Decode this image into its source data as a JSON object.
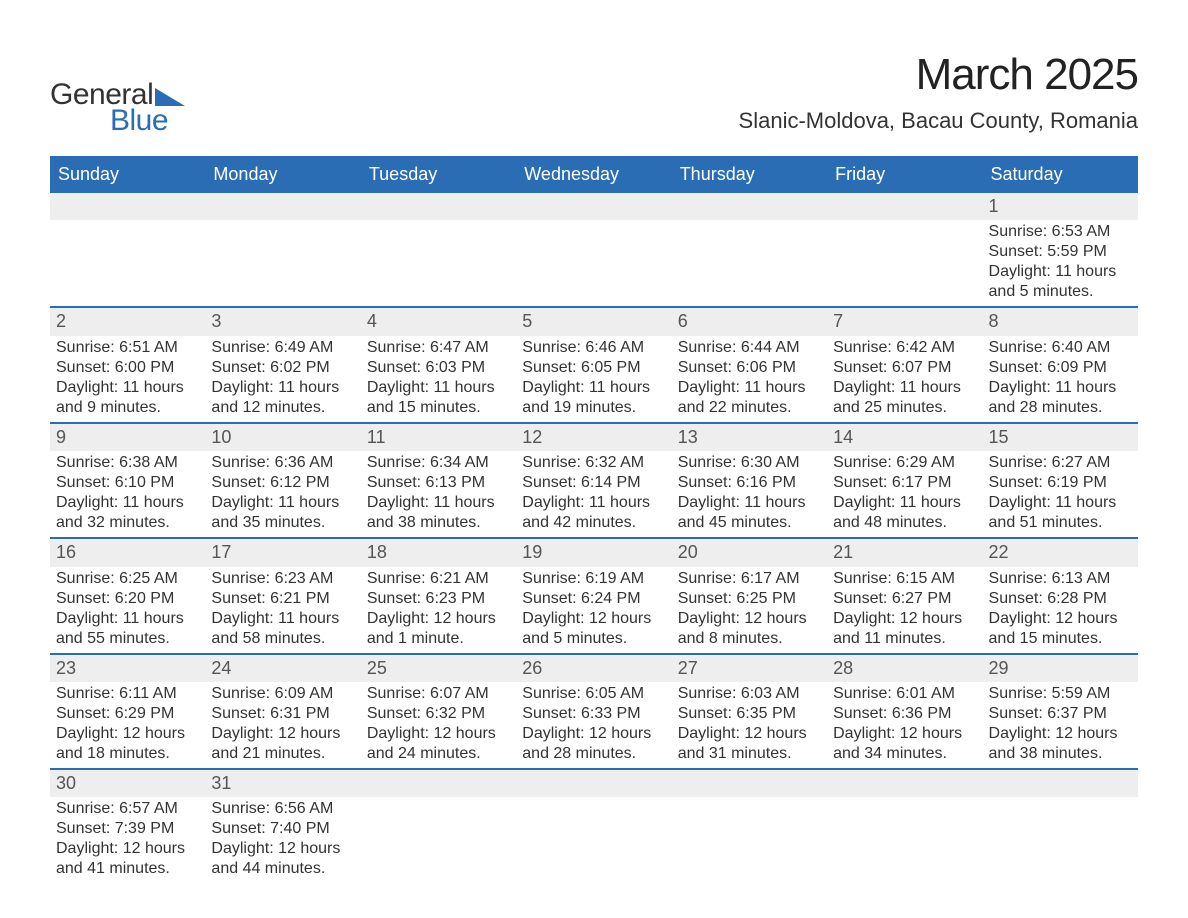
{
  "brand": {
    "part1": "General",
    "part2": "Blue"
  },
  "title": "March 2025",
  "location": "Slanic-Moldova, Bacau County, Romania",
  "colors": {
    "header_bg": "#2a6db4",
    "header_text": "#ffffff",
    "daynum_bg": "#eeeeee",
    "daynum_text": "#555555",
    "body_text": "#333333",
    "row_border": "#2a6db4",
    "brand_blue": "#2a6db4",
    "page_bg": "#ffffff"
  },
  "typography": {
    "title_fontsize": 44,
    "location_fontsize": 22,
    "header_fontsize": 18,
    "daynum_fontsize": 18,
    "cell_fontsize": 16,
    "font_family": "Arial"
  },
  "weekdays": [
    "Sunday",
    "Monday",
    "Tuesday",
    "Wednesday",
    "Thursday",
    "Friday",
    "Saturday"
  ],
  "weeks": [
    [
      null,
      null,
      null,
      null,
      null,
      null,
      {
        "n": "1",
        "sr": "Sunrise: 6:53 AM",
        "ss": "Sunset: 5:59 PM",
        "d1": "Daylight: 11 hours",
        "d2": "and 5 minutes."
      }
    ],
    [
      {
        "n": "2",
        "sr": "Sunrise: 6:51 AM",
        "ss": "Sunset: 6:00 PM",
        "d1": "Daylight: 11 hours",
        "d2": "and 9 minutes."
      },
      {
        "n": "3",
        "sr": "Sunrise: 6:49 AM",
        "ss": "Sunset: 6:02 PM",
        "d1": "Daylight: 11 hours",
        "d2": "and 12 minutes."
      },
      {
        "n": "4",
        "sr": "Sunrise: 6:47 AM",
        "ss": "Sunset: 6:03 PM",
        "d1": "Daylight: 11 hours",
        "d2": "and 15 minutes."
      },
      {
        "n": "5",
        "sr": "Sunrise: 6:46 AM",
        "ss": "Sunset: 6:05 PM",
        "d1": "Daylight: 11 hours",
        "d2": "and 19 minutes."
      },
      {
        "n": "6",
        "sr": "Sunrise: 6:44 AM",
        "ss": "Sunset: 6:06 PM",
        "d1": "Daylight: 11 hours",
        "d2": "and 22 minutes."
      },
      {
        "n": "7",
        "sr": "Sunrise: 6:42 AM",
        "ss": "Sunset: 6:07 PM",
        "d1": "Daylight: 11 hours",
        "d2": "and 25 minutes."
      },
      {
        "n": "8",
        "sr": "Sunrise: 6:40 AM",
        "ss": "Sunset: 6:09 PM",
        "d1": "Daylight: 11 hours",
        "d2": "and 28 minutes."
      }
    ],
    [
      {
        "n": "9",
        "sr": "Sunrise: 6:38 AM",
        "ss": "Sunset: 6:10 PM",
        "d1": "Daylight: 11 hours",
        "d2": "and 32 minutes."
      },
      {
        "n": "10",
        "sr": "Sunrise: 6:36 AM",
        "ss": "Sunset: 6:12 PM",
        "d1": "Daylight: 11 hours",
        "d2": "and 35 minutes."
      },
      {
        "n": "11",
        "sr": "Sunrise: 6:34 AM",
        "ss": "Sunset: 6:13 PM",
        "d1": "Daylight: 11 hours",
        "d2": "and 38 minutes."
      },
      {
        "n": "12",
        "sr": "Sunrise: 6:32 AM",
        "ss": "Sunset: 6:14 PM",
        "d1": "Daylight: 11 hours",
        "d2": "and 42 minutes."
      },
      {
        "n": "13",
        "sr": "Sunrise: 6:30 AM",
        "ss": "Sunset: 6:16 PM",
        "d1": "Daylight: 11 hours",
        "d2": "and 45 minutes."
      },
      {
        "n": "14",
        "sr": "Sunrise: 6:29 AM",
        "ss": "Sunset: 6:17 PM",
        "d1": "Daylight: 11 hours",
        "d2": "and 48 minutes."
      },
      {
        "n": "15",
        "sr": "Sunrise: 6:27 AM",
        "ss": "Sunset: 6:19 PM",
        "d1": "Daylight: 11 hours",
        "d2": "and 51 minutes."
      }
    ],
    [
      {
        "n": "16",
        "sr": "Sunrise: 6:25 AM",
        "ss": "Sunset: 6:20 PM",
        "d1": "Daylight: 11 hours",
        "d2": "and 55 minutes."
      },
      {
        "n": "17",
        "sr": "Sunrise: 6:23 AM",
        "ss": "Sunset: 6:21 PM",
        "d1": "Daylight: 11 hours",
        "d2": "and 58 minutes."
      },
      {
        "n": "18",
        "sr": "Sunrise: 6:21 AM",
        "ss": "Sunset: 6:23 PM",
        "d1": "Daylight: 12 hours",
        "d2": "and 1 minute."
      },
      {
        "n": "19",
        "sr": "Sunrise: 6:19 AM",
        "ss": "Sunset: 6:24 PM",
        "d1": "Daylight: 12 hours",
        "d2": "and 5 minutes."
      },
      {
        "n": "20",
        "sr": "Sunrise: 6:17 AM",
        "ss": "Sunset: 6:25 PM",
        "d1": "Daylight: 12 hours",
        "d2": "and 8 minutes."
      },
      {
        "n": "21",
        "sr": "Sunrise: 6:15 AM",
        "ss": "Sunset: 6:27 PM",
        "d1": "Daylight: 12 hours",
        "d2": "and 11 minutes."
      },
      {
        "n": "22",
        "sr": "Sunrise: 6:13 AM",
        "ss": "Sunset: 6:28 PM",
        "d1": "Daylight: 12 hours",
        "d2": "and 15 minutes."
      }
    ],
    [
      {
        "n": "23",
        "sr": "Sunrise: 6:11 AM",
        "ss": "Sunset: 6:29 PM",
        "d1": "Daylight: 12 hours",
        "d2": "and 18 minutes."
      },
      {
        "n": "24",
        "sr": "Sunrise: 6:09 AM",
        "ss": "Sunset: 6:31 PM",
        "d1": "Daylight: 12 hours",
        "d2": "and 21 minutes."
      },
      {
        "n": "25",
        "sr": "Sunrise: 6:07 AM",
        "ss": "Sunset: 6:32 PM",
        "d1": "Daylight: 12 hours",
        "d2": "and 24 minutes."
      },
      {
        "n": "26",
        "sr": "Sunrise: 6:05 AM",
        "ss": "Sunset: 6:33 PM",
        "d1": "Daylight: 12 hours",
        "d2": "and 28 minutes."
      },
      {
        "n": "27",
        "sr": "Sunrise: 6:03 AM",
        "ss": "Sunset: 6:35 PM",
        "d1": "Daylight: 12 hours",
        "d2": "and 31 minutes."
      },
      {
        "n": "28",
        "sr": "Sunrise: 6:01 AM",
        "ss": "Sunset: 6:36 PM",
        "d1": "Daylight: 12 hours",
        "d2": "and 34 minutes."
      },
      {
        "n": "29",
        "sr": "Sunrise: 5:59 AM",
        "ss": "Sunset: 6:37 PM",
        "d1": "Daylight: 12 hours",
        "d2": "and 38 minutes."
      }
    ],
    [
      {
        "n": "30",
        "sr": "Sunrise: 6:57 AM",
        "ss": "Sunset: 7:39 PM",
        "d1": "Daylight: 12 hours",
        "d2": "and 41 minutes."
      },
      {
        "n": "31",
        "sr": "Sunrise: 6:56 AM",
        "ss": "Sunset: 7:40 PM",
        "d1": "Daylight: 12 hours",
        "d2": "and 44 minutes."
      },
      null,
      null,
      null,
      null,
      null
    ]
  ]
}
